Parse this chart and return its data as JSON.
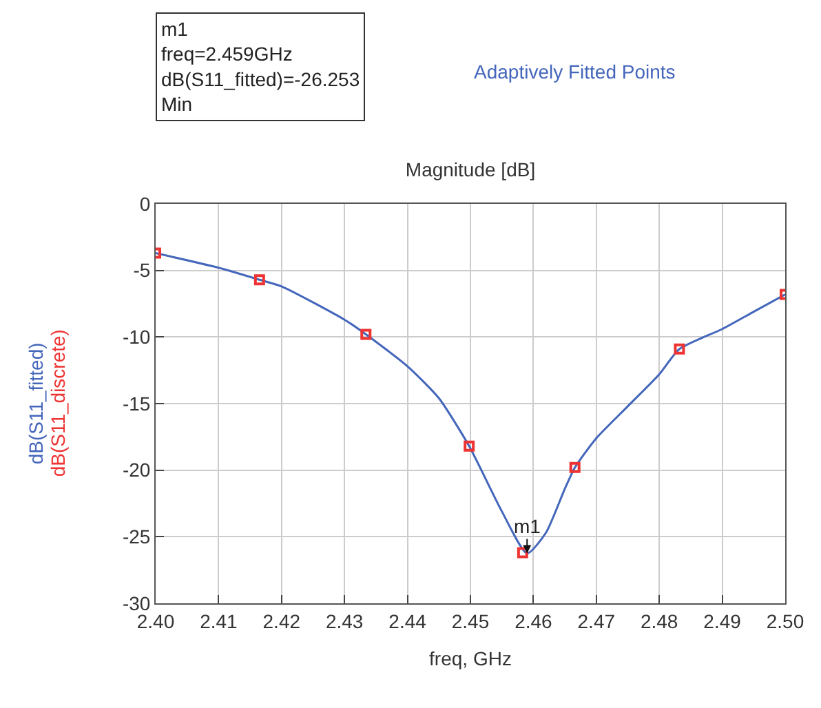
{
  "chart_data": {
    "type": "line",
    "title": "Magnitude [dB]",
    "xlabel": "freq, GHz",
    "xlim": [
      2.4,
      2.5
    ],
    "xticks": [
      {
        "value": 2.4,
        "label": "2.40"
      },
      {
        "value": 2.41,
        "label": "2.41"
      },
      {
        "value": 2.42,
        "label": "2.42"
      },
      {
        "value": 2.43,
        "label": "2.43"
      },
      {
        "value": 2.44,
        "label": "2.44"
      },
      {
        "value": 2.45,
        "label": "2.45"
      },
      {
        "value": 2.46,
        "label": "2.46"
      },
      {
        "value": 2.47,
        "label": "2.47"
      },
      {
        "value": 2.48,
        "label": "2.48"
      },
      {
        "value": 2.49,
        "label": "2.49"
      },
      {
        "value": 2.5,
        "label": "2.50"
      }
    ],
    "ylim": [
      -30,
      0
    ],
    "yticks": [
      0,
      -5,
      -10,
      -15,
      -20,
      -25,
      -30
    ],
    "grid": true,
    "legend": false,
    "series": [
      {
        "name": "dB(S11_fitted)",
        "color": "#4466bb",
        "marker": "none",
        "line_style": "solid",
        "x": [
          2.4,
          2.41,
          2.4165,
          2.42,
          2.43,
          2.4334,
          2.44,
          2.445,
          2.4498,
          2.455,
          2.459,
          2.462,
          2.465,
          2.4666,
          2.47,
          2.475,
          2.48,
          2.4832,
          2.49,
          2.495,
          2.5
        ],
        "values": [
          -3.7,
          -4.8,
          -5.7,
          -6.2,
          -8.7,
          -9.8,
          -12.2,
          -14.6,
          -18.2,
          -23.1,
          -26.253,
          -24.7,
          -21.4,
          -19.8,
          -17.6,
          -15.2,
          -12.8,
          -10.9,
          -9.4,
          -8.1,
          -6.8
        ]
      },
      {
        "name": "dB(S11_discrete)",
        "type": "scatter",
        "color": "#ee3333",
        "marker": "square",
        "x": [
          2.4,
          2.4165,
          2.4334,
          2.4498,
          2.4583,
          2.4666,
          2.4832,
          2.5
        ],
        "values": [
          -3.7,
          -5.7,
          -9.8,
          -18.2,
          -26.2,
          -19.8,
          -10.9,
          -6.8
        ]
      }
    ],
    "annotations": [
      {
        "text": "m1",
        "x": 2.459,
        "y": -26.253
      },
      "m1\nfreq=2.459GHz\ndB(S11_fitted)=-26.253\nMin",
      "Adaptively Fitted Points"
    ]
  }
}
